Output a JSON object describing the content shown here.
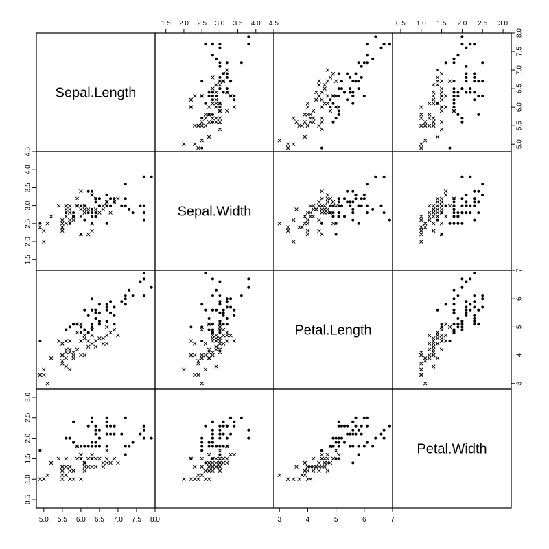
{
  "chart_data": {
    "type": "scatter",
    "layout": "pairs-matrix",
    "variables": [
      "Sepal.Length",
      "Sepal.Width",
      "Petal.Length",
      "Petal.Width"
    ],
    "axes": {
      "Sepal.Length": {
        "range": [
          4.8,
          8.0
        ],
        "ticks": [
          "5.0",
          "5.5",
          "6.0",
          "6.5",
          "7.0",
          "7.5",
          "8.0"
        ]
      },
      "Sepal.Width": {
        "range": [
          1.2,
          4.5
        ],
        "ticks": [
          "1.5",
          "2.0",
          "2.5",
          "3.0",
          "3.5",
          "4.0",
          "4.5"
        ]
      },
      "Petal.Length": {
        "range": [
          2.8,
          7.0
        ],
        "ticks": [
          "3",
          "4",
          "5",
          "6",
          "7"
        ]
      },
      "Petal.Width": {
        "range": [
          0.3,
          3.2
        ],
        "ticks": [
          "0.5",
          "1.0",
          "1.5",
          "2.0",
          "2.5",
          "3.0"
        ]
      }
    },
    "series": [
      {
        "marker": "cross",
        "points": [
          [
            7.0,
            3.2,
            4.7,
            1.4
          ],
          [
            6.4,
            3.2,
            4.5,
            1.5
          ],
          [
            6.9,
            3.1,
            4.9,
            1.5
          ],
          [
            5.5,
            2.3,
            4.0,
            1.3
          ],
          [
            6.5,
            2.8,
            4.6,
            1.5
          ],
          [
            5.7,
            2.8,
            4.5,
            1.3
          ],
          [
            6.3,
            3.3,
            4.7,
            1.6
          ],
          [
            4.9,
            2.4,
            3.3,
            1.0
          ],
          [
            6.6,
            2.9,
            4.6,
            1.3
          ],
          [
            5.2,
            2.7,
            3.9,
            1.4
          ],
          [
            5.0,
            2.0,
            3.5,
            1.0
          ],
          [
            5.9,
            3.0,
            4.2,
            1.5
          ],
          [
            6.0,
            2.2,
            4.0,
            1.0
          ],
          [
            6.1,
            2.9,
            4.7,
            1.4
          ],
          [
            5.6,
            2.9,
            3.6,
            1.3
          ],
          [
            6.7,
            3.1,
            4.4,
            1.4
          ],
          [
            5.6,
            3.0,
            4.5,
            1.5
          ],
          [
            5.8,
            2.7,
            4.1,
            1.0
          ],
          [
            6.2,
            2.2,
            4.5,
            1.5
          ],
          [
            5.6,
            2.5,
            3.9,
            1.1
          ],
          [
            5.9,
            3.2,
            4.8,
            1.8
          ],
          [
            6.1,
            2.8,
            4.0,
            1.3
          ],
          [
            6.3,
            2.5,
            4.9,
            1.5
          ],
          [
            6.1,
            2.8,
            4.7,
            1.2
          ],
          [
            6.4,
            2.9,
            4.3,
            1.3
          ],
          [
            6.6,
            3.0,
            4.4,
            1.4
          ],
          [
            6.8,
            2.8,
            4.8,
            1.4
          ],
          [
            6.7,
            3.0,
            5.0,
            1.7
          ],
          [
            6.0,
            2.9,
            4.5,
            1.5
          ],
          [
            5.7,
            2.6,
            3.5,
            1.0
          ],
          [
            5.5,
            2.4,
            3.8,
            1.1
          ],
          [
            5.5,
            2.4,
            3.7,
            1.0
          ],
          [
            5.8,
            2.7,
            3.9,
            1.2
          ],
          [
            6.0,
            2.7,
            5.1,
            1.6
          ],
          [
            5.4,
            3.0,
            4.5,
            1.5
          ],
          [
            6.0,
            3.4,
            4.5,
            1.6
          ],
          [
            6.7,
            3.1,
            4.7,
            1.5
          ],
          [
            6.3,
            2.3,
            4.4,
            1.3
          ],
          [
            5.6,
            3.0,
            4.1,
            1.3
          ],
          [
            5.5,
            2.5,
            4.0,
            1.3
          ],
          [
            5.5,
            2.6,
            4.4,
            1.2
          ],
          [
            6.1,
            3.0,
            4.6,
            1.4
          ],
          [
            5.8,
            2.6,
            4.0,
            1.2
          ],
          [
            5.0,
            2.3,
            3.3,
            1.0
          ],
          [
            5.6,
            2.7,
            4.2,
            1.3
          ],
          [
            5.7,
            3.0,
            4.2,
            1.2
          ],
          [
            5.7,
            2.9,
            4.2,
            1.3
          ],
          [
            6.2,
            2.9,
            4.3,
            1.3
          ],
          [
            5.1,
            2.5,
            3.0,
            1.1
          ],
          [
            5.7,
            2.8,
            4.1,
            1.3
          ]
        ]
      },
      {
        "marker": "dot",
        "points": [
          [
            6.3,
            3.3,
            6.0,
            2.5
          ],
          [
            5.8,
            2.7,
            5.1,
            1.9
          ],
          [
            7.1,
            3.0,
            5.9,
            2.1
          ],
          [
            6.3,
            2.9,
            5.6,
            1.8
          ],
          [
            6.5,
            3.0,
            5.8,
            2.2
          ],
          [
            7.6,
            3.0,
            6.6,
            2.1
          ],
          [
            4.9,
            2.5,
            4.5,
            1.7
          ],
          [
            7.3,
            2.9,
            6.3,
            1.8
          ],
          [
            6.7,
            2.5,
            5.8,
            1.8
          ],
          [
            7.2,
            3.6,
            6.1,
            2.5
          ],
          [
            6.5,
            3.2,
            5.1,
            2.0
          ],
          [
            6.4,
            2.7,
            5.3,
            1.9
          ],
          [
            6.8,
            3.0,
            5.5,
            2.1
          ],
          [
            5.7,
            2.5,
            5.0,
            2.0
          ],
          [
            5.8,
            2.8,
            5.1,
            2.4
          ],
          [
            6.4,
            3.2,
            5.3,
            2.3
          ],
          [
            6.5,
            3.0,
            5.5,
            1.8
          ],
          [
            7.7,
            3.8,
            6.7,
            2.2
          ],
          [
            7.7,
            2.6,
            6.9,
            2.3
          ],
          [
            6.0,
            2.2,
            5.0,
            1.5
          ],
          [
            6.9,
            3.2,
            5.7,
            2.3
          ],
          [
            5.6,
            2.8,
            4.9,
            2.0
          ],
          [
            7.7,
            2.8,
            6.7,
            2.0
          ],
          [
            6.3,
            2.7,
            4.9,
            1.8
          ],
          [
            6.7,
            3.3,
            5.7,
            2.1
          ],
          [
            7.2,
            3.2,
            6.0,
            1.8
          ],
          [
            6.2,
            2.8,
            4.8,
            1.8
          ],
          [
            6.1,
            3.0,
            4.9,
            1.8
          ],
          [
            6.4,
            2.8,
            5.6,
            2.1
          ],
          [
            7.2,
            3.0,
            5.8,
            1.6
          ],
          [
            7.4,
            2.8,
            6.1,
            1.9
          ],
          [
            7.9,
            3.8,
            6.4,
            2.0
          ],
          [
            6.4,
            2.8,
            5.6,
            2.2
          ],
          [
            6.3,
            2.8,
            5.1,
            1.5
          ],
          [
            6.1,
            2.6,
            5.6,
            1.4
          ],
          [
            7.7,
            3.0,
            6.1,
            2.3
          ],
          [
            6.3,
            3.4,
            5.6,
            2.4
          ],
          [
            6.4,
            3.1,
            5.5,
            1.8
          ],
          [
            6.0,
            3.0,
            4.8,
            1.8
          ],
          [
            6.9,
            3.1,
            5.4,
            2.1
          ],
          [
            6.7,
            3.1,
            5.6,
            2.4
          ],
          [
            6.9,
            3.1,
            5.1,
            2.3
          ],
          [
            5.8,
            2.7,
            5.1,
            1.9
          ],
          [
            6.8,
            3.2,
            5.9,
            2.3
          ],
          [
            6.7,
            3.3,
            5.7,
            2.5
          ],
          [
            6.7,
            3.0,
            5.2,
            2.3
          ],
          [
            6.3,
            2.5,
            5.0,
            1.9
          ],
          [
            6.5,
            3.0,
            5.2,
            2.0
          ],
          [
            6.2,
            3.4,
            5.4,
            2.3
          ],
          [
            5.9,
            3.0,
            5.1,
            1.8
          ]
        ]
      }
    ]
  }
}
